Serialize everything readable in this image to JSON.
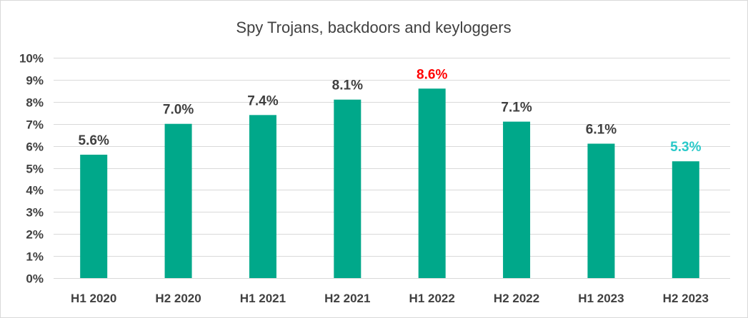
{
  "chart_data": {
    "type": "bar",
    "title": "Spy Trojans, backdoors and keyloggers",
    "xlabel": "",
    "ylabel": "",
    "categories": [
      "H1 2020",
      "H2 2020",
      "H1 2021",
      "H2 2021",
      "H1 2022",
      "H2 2022",
      "H1 2023",
      "H2 2023"
    ],
    "values": [
      5.6,
      7.0,
      7.4,
      8.1,
      8.6,
      7.1,
      6.1,
      5.3
    ],
    "value_labels": [
      "5.6%",
      "7.0%",
      "7.4%",
      "8.1%",
      "8.6%",
      "7.1%",
      "6.1%",
      "5.3%"
    ],
    "label_colors": [
      "#404040",
      "#404040",
      "#404040",
      "#404040",
      "#ff0000",
      "#404040",
      "#404040",
      "#2ac9c9"
    ],
    "ylim": [
      0,
      10
    ],
    "yticks": [
      0,
      1,
      2,
      3,
      4,
      5,
      6,
      7,
      8,
      9,
      10
    ],
    "ytick_labels": [
      "0%",
      "1%",
      "2%",
      "3%",
      "4%",
      "5%",
      "6%",
      "7%",
      "8%",
      "9%",
      "10%"
    ],
    "bar_color": "#00a88a",
    "grid_color": "#d9d9d9",
    "grid": true,
    "legend": "none"
  }
}
